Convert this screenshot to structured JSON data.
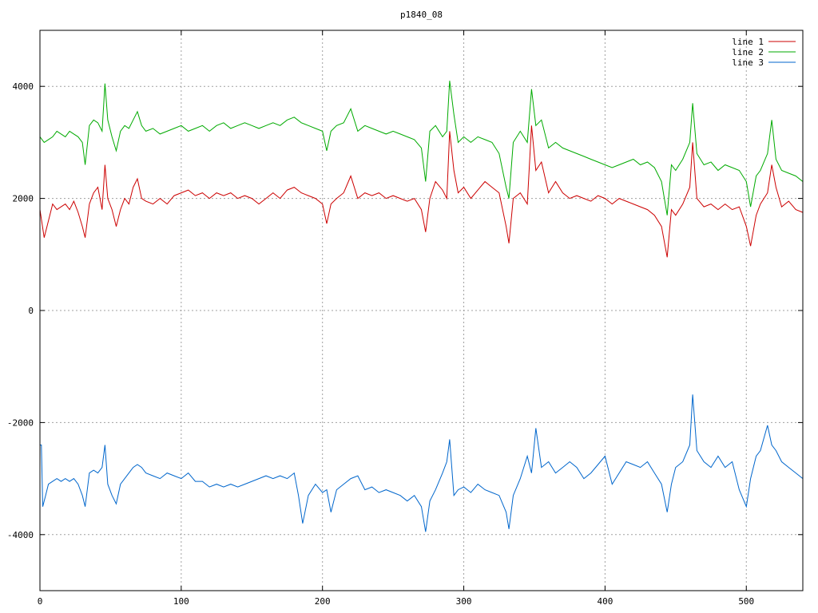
{
  "chart_data": {
    "type": "line",
    "title": "p1840_08",
    "xlabel": "",
    "ylabel": "",
    "xlim": [
      0,
      540
    ],
    "ylim": [
      -5000,
      5000
    ],
    "x_ticks": [
      0,
      100,
      200,
      300,
      400,
      500
    ],
    "y_ticks": [
      -4000,
      -2000,
      0,
      2000,
      4000
    ],
    "x_tick_labels": [
      "0",
      "100",
      "200",
      "300",
      "400",
      "500"
    ],
    "y_tick_labels": [
      "-4000",
      "-2000",
      "0",
      "2000",
      "4000"
    ],
    "grid": true,
    "legend_position": "top-right",
    "series": [
      {
        "name": "line 1",
        "color": "#cc0000",
        "x": [
          0,
          3,
          6,
          9,
          12,
          15,
          18,
          21,
          24,
          27,
          30,
          32,
          35,
          38,
          41,
          44,
          46,
          48,
          51,
          54,
          57,
          60,
          63,
          66,
          69,
          72,
          75,
          80,
          85,
          90,
          95,
          100,
          105,
          110,
          115,
          120,
          125,
          130,
          135,
          140,
          145,
          150,
          155,
          160,
          165,
          170,
          175,
          180,
          185,
          190,
          195,
          200,
          203,
          206,
          210,
          215,
          220,
          225,
          230,
          235,
          240,
          245,
          250,
          255,
          260,
          265,
          270,
          273,
          276,
          280,
          285,
          288,
          290,
          293,
          296,
          300,
          305,
          310,
          315,
          320,
          325,
          330,
          332,
          335,
          340,
          345,
          348,
          351,
          355,
          360,
          365,
          370,
          375,
          380,
          385,
          390,
          395,
          400,
          405,
          410,
          415,
          420,
          425,
          430,
          435,
          440,
          444,
          447,
          450,
          455,
          460,
          462,
          465,
          470,
          475,
          480,
          485,
          490,
          495,
          500,
          503,
          507,
          510,
          515,
          518,
          521,
          525,
          530,
          535,
          540
        ],
        "y": [
          1800,
          1300,
          1600,
          1900,
          1800,
          1850,
          1900,
          1800,
          1950,
          1750,
          1500,
          1300,
          1900,
          2100,
          2200,
          1800,
          2600,
          2000,
          1800,
          1500,
          1800,
          2000,
          1900,
          2200,
          2350,
          2000,
          1950,
          1900,
          2000,
          1900,
          2050,
          2100,
          2150,
          2050,
          2100,
          2000,
          2100,
          2050,
          2100,
          2000,
          2050,
          2000,
          1900,
          2000,
          2100,
          2000,
          2150,
          2200,
          2100,
          2050,
          2000,
          1900,
          1550,
          1900,
          2000,
          2100,
          2400,
          2000,
          2100,
          2050,
          2100,
          2000,
          2050,
          2000,
          1950,
          2000,
          1800,
          1400,
          2000,
          2300,
          2150,
          2000,
          3200,
          2500,
          2100,
          2200,
          2000,
          2150,
          2300,
          2200,
          2100,
          1500,
          1200,
          2000,
          2100,
          1900,
          3300,
          2500,
          2650,
          2100,
          2300,
          2100,
          2000,
          2050,
          2000,
          1950,
          2050,
          2000,
          1900,
          2000,
          1950,
          1900,
          1850,
          1800,
          1700,
          1500,
          950,
          1800,
          1700,
          1900,
          2200,
          3000,
          2000,
          1850,
          1900,
          1800,
          1900,
          1800,
          1850,
          1500,
          1150,
          1700,
          1900,
          2100,
          2600,
          2200,
          1850,
          1950,
          1800,
          1750
        ]
      },
      {
        "name": "line 2",
        "color": "#00aa00",
        "x": [
          0,
          3,
          6,
          9,
          12,
          15,
          18,
          21,
          24,
          27,
          30,
          32,
          35,
          38,
          41,
          44,
          46,
          48,
          51,
          54,
          57,
          60,
          63,
          66,
          69,
          72,
          75,
          80,
          85,
          90,
          95,
          100,
          105,
          110,
          115,
          120,
          125,
          130,
          135,
          140,
          145,
          150,
          155,
          160,
          165,
          170,
          175,
          180,
          185,
          190,
          195,
          200,
          203,
          206,
          210,
          215,
          220,
          225,
          230,
          235,
          240,
          245,
          250,
          255,
          260,
          265,
          270,
          273,
          276,
          280,
          285,
          288,
          290,
          293,
          296,
          300,
          305,
          310,
          315,
          320,
          325,
          330,
          332,
          335,
          340,
          345,
          348,
          351,
          355,
          360,
          365,
          370,
          375,
          380,
          385,
          390,
          395,
          400,
          405,
          410,
          415,
          420,
          425,
          430,
          435,
          440,
          444,
          447,
          450,
          455,
          460,
          462,
          465,
          470,
          475,
          480,
          485,
          490,
          495,
          500,
          503,
          507,
          510,
          515,
          518,
          521,
          525,
          530,
          535,
          540
        ],
        "y": [
          3100,
          3000,
          3050,
          3100,
          3200,
          3150,
          3100,
          3200,
          3150,
          3100,
          3000,
          2600,
          3300,
          3400,
          3350,
          3200,
          4050,
          3400,
          3100,
          2850,
          3200,
          3300,
          3250,
          3400,
          3550,
          3300,
          3200,
          3250,
          3150,
          3200,
          3250,
          3300,
          3200,
          3250,
          3300,
          3200,
          3300,
          3350,
          3250,
          3300,
          3350,
          3300,
          3250,
          3300,
          3350,
          3300,
          3400,
          3450,
          3350,
          3300,
          3250,
          3200,
          2850,
          3200,
          3300,
          3350,
          3600,
          3200,
          3300,
          3250,
          3200,
          3150,
          3200,
          3150,
          3100,
          3050,
          2900,
          2300,
          3200,
          3300,
          3100,
          3200,
          4100,
          3500,
          3000,
          3100,
          3000,
          3100,
          3050,
          3000,
          2800,
          2200,
          2000,
          3000,
          3200,
          3000,
          3950,
          3300,
          3400,
          2900,
          3000,
          2900,
          2850,
          2800,
          2750,
          2700,
          2650,
          2600,
          2550,
          2600,
          2650,
          2700,
          2600,
          2650,
          2550,
          2300,
          1700,
          2600,
          2500,
          2700,
          3000,
          3700,
          2800,
          2600,
          2650,
          2500,
          2600,
          2550,
          2500,
          2300,
          1850,
          2400,
          2500,
          2800,
          3400,
          2700,
          2500,
          2450,
          2400,
          2300
        ]
      },
      {
        "name": "line 3",
        "color": "#0066cc",
        "x": [
          0,
          1,
          2,
          4,
          6,
          9,
          12,
          15,
          18,
          21,
          24,
          27,
          30,
          32,
          35,
          38,
          41,
          44,
          46,
          48,
          51,
          54,
          57,
          60,
          63,
          66,
          69,
          72,
          75,
          80,
          85,
          90,
          95,
          100,
          105,
          110,
          115,
          120,
          125,
          130,
          135,
          140,
          145,
          150,
          155,
          160,
          165,
          170,
          175,
          180,
          183,
          186,
          190,
          195,
          200,
          203,
          206,
          210,
          215,
          220,
          225,
          230,
          235,
          240,
          245,
          250,
          255,
          260,
          265,
          270,
          273,
          276,
          280,
          285,
          288,
          290,
          293,
          296,
          300,
          305,
          310,
          315,
          320,
          325,
          330,
          332,
          335,
          340,
          345,
          348,
          351,
          355,
          360,
          365,
          370,
          375,
          380,
          385,
          390,
          395,
          400,
          405,
          410,
          415,
          420,
          425,
          430,
          435,
          440,
          444,
          447,
          450,
          455,
          460,
          462,
          465,
          470,
          475,
          480,
          485,
          490,
          495,
          500,
          503,
          507,
          510,
          515,
          518,
          521,
          525,
          530,
          535,
          540
        ],
        "y": [
          -2400,
          -2400,
          -3500,
          -3300,
          -3100,
          -3050,
          -3000,
          -3050,
          -3000,
          -3050,
          -3000,
          -3100,
          -3300,
          -3500,
          -2900,
          -2850,
          -2900,
          -2800,
          -2400,
          -3100,
          -3300,
          -3450,
          -3100,
          -3000,
          -2900,
          -2800,
          -2750,
          -2800,
          -2900,
          -2950,
          -3000,
          -2900,
          -2950,
          -3000,
          -2900,
          -3050,
          -3050,
          -3150,
          -3100,
          -3150,
          -3100,
          -3150,
          -3100,
          -3050,
          -3000,
          -2950,
          -3000,
          -2950,
          -3000,
          -2900,
          -3300,
          -3800,
          -3300,
          -3100,
          -3250,
          -3200,
          -3600,
          -3200,
          -3100,
          -3000,
          -2950,
          -3200,
          -3150,
          -3250,
          -3200,
          -3250,
          -3300,
          -3400,
          -3300,
          -3500,
          -3950,
          -3400,
          -3200,
          -2900,
          -2700,
          -2300,
          -3300,
          -3200,
          -3150,
          -3250,
          -3100,
          -3200,
          -3250,
          -3300,
          -3600,
          -3900,
          -3300,
          -3000,
          -2600,
          -2900,
          -2100,
          -2800,
          -2700,
          -2900,
          -2800,
          -2700,
          -2800,
          -3000,
          -2900,
          -2750,
          -2600,
          -3100,
          -2900,
          -2700,
          -2750,
          -2800,
          -2700,
          -2900,
          -3100,
          -3600,
          -3100,
          -2800,
          -2700,
          -2400,
          -1500,
          -2500,
          -2700,
          -2800,
          -2600,
          -2800,
          -2700,
          -3200,
          -3500,
          -3000,
          -2600,
          -2500,
          -2050,
          -2400,
          -2500,
          -2700,
          -2800,
          -2900,
          -3000
        ]
      }
    ]
  }
}
